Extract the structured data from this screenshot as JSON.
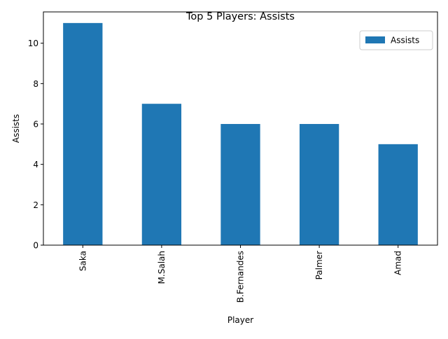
{
  "chart_data": {
    "type": "bar",
    "title": "Top 5 Players: Assists",
    "xlabel": "Player",
    "ylabel": "Assists",
    "categories": [
      "Saka",
      "M.Salah",
      "B.Fernandes",
      "Palmer",
      "Amad"
    ],
    "series": [
      {
        "name": "Assists",
        "values": [
          11,
          7,
          6,
          6,
          5
        ],
        "color": "#1f77b4"
      }
    ],
    "ylim": [
      0,
      11.55
    ],
    "yticks": [
      0,
      2,
      4,
      6,
      8,
      10
    ],
    "grid": false,
    "legend_position": "top-right"
  }
}
